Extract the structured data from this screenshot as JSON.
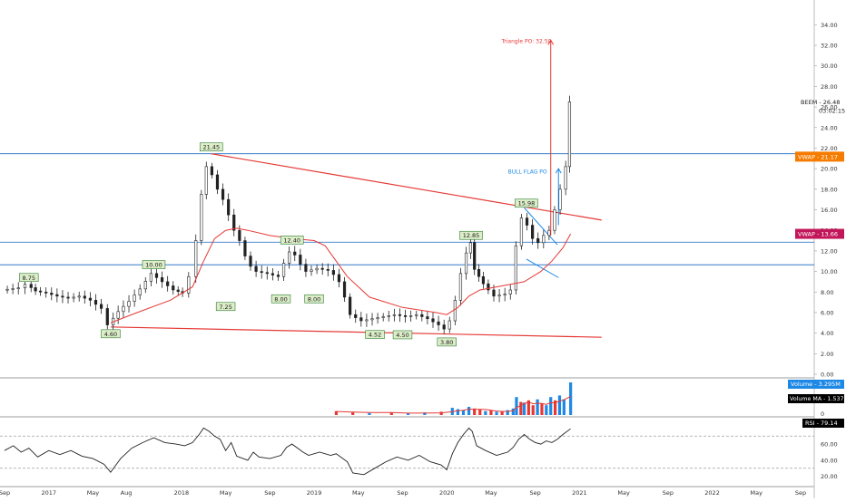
{
  "chart_data": {
    "type": "candlestick",
    "ticker": "BEEM",
    "price_label": "BEEM - 26.48",
    "countdown": "03:02:15",
    "ylim": [
      0,
      35
    ],
    "y_ticks": [
      "0.00",
      "2.00",
      "4.00",
      "6.00",
      "8.00",
      "10.00",
      "12.00",
      "14.00",
      "16.00",
      "18.00",
      "20.00",
      "22.00",
      "24.00",
      "26.00",
      "28.00",
      "30.00",
      "32.00",
      "34.00"
    ],
    "x_ticks": [
      {
        "label": "Sep",
        "t": 0
      },
      {
        "label": "2017",
        "t": 4
      },
      {
        "label": "May",
        "t": 8
      },
      {
        "label": "Aug",
        "t": 11
      },
      {
        "label": "2018",
        "t": 16
      },
      {
        "label": "May",
        "t": 20
      },
      {
        "label": "Sep",
        "t": 24
      },
      {
        "label": "2019",
        "t": 28
      },
      {
        "label": "May",
        "t": 32
      },
      {
        "label": "Sep",
        "t": 36
      },
      {
        "label": "2020",
        "t": 40
      },
      {
        "label": "May",
        "t": 44
      },
      {
        "label": "Sep",
        "t": 48
      },
      {
        "label": "2021",
        "t": 52
      },
      {
        "label": "May",
        "t": 56
      },
      {
        "label": "Sep",
        "t": 60
      },
      {
        "label": "2022",
        "t": 64
      },
      {
        "label": "May",
        "t": 68
      },
      {
        "label": "Sep",
        "t": 72
      }
    ],
    "price_series": [
      [
        0,
        8.2
      ],
      [
        1.5,
        8.4
      ],
      [
        2.2,
        8.75
      ],
      [
        3,
        8.1
      ],
      [
        4,
        7.9
      ],
      [
        5,
        7.6
      ],
      [
        6,
        7.4
      ],
      [
        7,
        7.6
      ],
      [
        8,
        7.2
      ],
      [
        9,
        6.4
      ],
      [
        9.6,
        4.8
      ],
      [
        10.5,
        6.1
      ],
      [
        11.5,
        7.1
      ],
      [
        12.5,
        8.3
      ],
      [
        13.5,
        9.8
      ],
      [
        14.5,
        9.0
      ],
      [
        15.5,
        8.2
      ],
      [
        16.3,
        7.9
      ],
      [
        17,
        9.5
      ],
      [
        17.6,
        13.0
      ],
      [
        18,
        17.5
      ],
      [
        18.5,
        20.2
      ],
      [
        19,
        19.4
      ],
      [
        19.5,
        18.0
      ],
      [
        20,
        17.0
      ],
      [
        20.5,
        15.5
      ],
      [
        21,
        14.0
      ],
      [
        21.5,
        13.0
      ],
      [
        22,
        11.5
      ],
      [
        22.5,
        10.5
      ],
      [
        23,
        10.0
      ],
      [
        24,
        9.8
      ],
      [
        25,
        9.5
      ],
      [
        25.5,
        10.8
      ],
      [
        26,
        11.9
      ],
      [
        26.5,
        11.6
      ],
      [
        27,
        10.7
      ],
      [
        27.5,
        10.0
      ],
      [
        28.5,
        10.3
      ],
      [
        29.5,
        10.1
      ],
      [
        30,
        9.7
      ],
      [
        30.5,
        9.0
      ],
      [
        31,
        7.5
      ],
      [
        31.5,
        5.8
      ],
      [
        32.5,
        5.2
      ],
      [
        33.5,
        5.4
      ],
      [
        34.5,
        5.6
      ],
      [
        35.5,
        5.8
      ],
      [
        36.5,
        5.6
      ],
      [
        37.5,
        5.8
      ],
      [
        38.5,
        5.4
      ],
      [
        39.5,
        4.8
      ],
      [
        40,
        4.4
      ],
      [
        40.5,
        5.2
      ],
      [
        41,
        7.2
      ],
      [
        41.5,
        9.8
      ],
      [
        42,
        11.8
      ],
      [
        42.3,
        12.8
      ],
      [
        42.7,
        10.2
      ],
      [
        43.5,
        8.8
      ],
      [
        44.5,
        7.6
      ],
      [
        45.5,
        7.8
      ],
      [
        46,
        8.2
      ],
      [
        46.5,
        12.5
      ],
      [
        47,
        15.2
      ],
      [
        47.5,
        14.5
      ],
      [
        48,
        13.2
      ],
      [
        48.5,
        12.8
      ],
      [
        49,
        13.5
      ],
      [
        49.5,
        14.0
      ],
      [
        50,
        16.0
      ],
      [
        50.5,
        18.0
      ],
      [
        51,
        20.2
      ],
      [
        51.2,
        26.5
      ]
    ],
    "vwap_series": [
      [
        9.6,
        5.0
      ],
      [
        12,
        6.0
      ],
      [
        15,
        7.2
      ],
      [
        17,
        8.5
      ],
      [
        18,
        11.0
      ],
      [
        19,
        13.2
      ],
      [
        20,
        14.0
      ],
      [
        21,
        14.2
      ],
      [
        22,
        14.0
      ],
      [
        24,
        13.5
      ],
      [
        26,
        13.2
      ],
      [
        28,
        13.0
      ],
      [
        29,
        12.5
      ],
      [
        30,
        11.0
      ],
      [
        31,
        9.5
      ],
      [
        33,
        7.5
      ],
      [
        36,
        6.5
      ],
      [
        39,
        6.0
      ],
      [
        40,
        5.8
      ],
      [
        41,
        6.5
      ],
      [
        42,
        7.6
      ],
      [
        43,
        8.2
      ],
      [
        45,
        8.6
      ],
      [
        47,
        9.0
      ],
      [
        48.5,
        10.0
      ],
      [
        49.5,
        11.0
      ],
      [
        50.5,
        12.3
      ],
      [
        51.2,
        13.66
      ]
    ],
    "horizontal_lines": [
      21.45,
      12.85,
      10.65
    ],
    "trendlines": [
      {
        "from": [
          18.7,
          21.45
        ],
        "to": [
          54,
          15.0
        ]
      },
      {
        "from": [
          9.6,
          4.6
        ],
        "to": [
          54,
          3.6
        ]
      }
    ],
    "flag_lines": [
      {
        "from": [
          47,
          16.2
        ],
        "to": [
          50,
          12.6
        ]
      },
      {
        "from": [
          47.2,
          11.2
        ],
        "to": [
          50.1,
          9.4
        ]
      }
    ],
    "triangle_po": {
      "t": 49.4,
      "from": 13.5,
      "to": 32.5
    },
    "bull_flag_po": {
      "t": 50.1,
      "from": 14.5,
      "to": 20.0
    },
    "price_labels": [
      {
        "text": "8.75",
        "t": 2.2,
        "y": 8.75,
        "pos": "above"
      },
      {
        "text": "4.60",
        "t": 9.6,
        "y": 4.6,
        "pos": "below"
      },
      {
        "text": "10.00",
        "t": 13.5,
        "y": 10.0,
        "pos": "above"
      },
      {
        "text": "21.45",
        "t": 18.7,
        "y": 21.45,
        "pos": "above"
      },
      {
        "text": "7.25",
        "t": 20.0,
        "y": 7.25,
        "pos": "below"
      },
      {
        "text": "8.00",
        "t": 25.0,
        "y": 8.0,
        "pos": "below"
      },
      {
        "text": "12.40",
        "t": 26.0,
        "y": 12.4,
        "pos": "above"
      },
      {
        "text": "8.00",
        "t": 28.0,
        "y": 8.0,
        "pos": "below"
      },
      {
        "text": "4.52",
        "t": 33.5,
        "y": 4.52,
        "pos": "below"
      },
      {
        "text": "4.50",
        "t": 36.0,
        "y": 4.5,
        "pos": "below"
      },
      {
        "text": "3.80",
        "t": 40.0,
        "y": 3.8,
        "pos": "below"
      },
      {
        "text": "12.85",
        "t": 42.2,
        "y": 12.85,
        "pos": "above"
      },
      {
        "text": "15.98",
        "t": 47.2,
        "y": 15.98,
        "pos": "above"
      }
    ],
    "annotations": [
      {
        "text": "Triangle PO: 32.50",
        "t": 47.2,
        "y": 32.5,
        "color": "#e53935"
      },
      {
        "text": "BULL FLAG PO",
        "t": 47.3,
        "y": 19.8,
        "color": "#1e88e5"
      }
    ],
    "axis_badges": [
      {
        "text": "VWAP - 21.17",
        "y": 21.17,
        "color": "#f57c00"
      },
      {
        "text": "VWAP - 13.66",
        "y": 13.66,
        "color": "#c2185b"
      }
    ],
    "volume": {
      "label": "Volume - 3.295M",
      "ma_label": "Volume MA - 1.537M",
      "zero_label": "0",
      "bars": [
        {
          "t": 30.0,
          "v": 0.12,
          "c": "#e53935"
        },
        {
          "t": 31.5,
          "v": 0.08,
          "c": "#e53935"
        },
        {
          "t": 33.0,
          "v": 0.06,
          "c": "#1e88e5"
        },
        {
          "t": 35.0,
          "v": 0.07,
          "c": "#e53935"
        },
        {
          "t": 36.5,
          "v": 0.05,
          "c": "#1e88e5"
        },
        {
          "t": 38.0,
          "v": 0.08,
          "c": "#1e88e5"
        },
        {
          "t": 39.5,
          "v": 0.1,
          "c": "#e53935"
        },
        {
          "t": 40.5,
          "v": 0.22,
          "c": "#1e88e5"
        },
        {
          "t": 41.0,
          "v": 0.18,
          "c": "#1e88e5"
        },
        {
          "t": 41.5,
          "v": 0.15,
          "c": "#1e88e5"
        },
        {
          "t": 42.0,
          "v": 0.25,
          "c": "#1e88e5"
        },
        {
          "t": 42.5,
          "v": 0.2,
          "c": "#e53935"
        },
        {
          "t": 43.0,
          "v": 0.18,
          "c": "#e53935"
        },
        {
          "t": 43.5,
          "v": 0.12,
          "c": "#1e88e5"
        },
        {
          "t": 44.0,
          "v": 0.14,
          "c": "#e53935"
        },
        {
          "t": 44.5,
          "v": 0.1,
          "c": "#1e88e5"
        },
        {
          "t": 45.0,
          "v": 0.12,
          "c": "#e53935"
        },
        {
          "t": 45.5,
          "v": 0.15,
          "c": "#1e88e5"
        },
        {
          "t": 46.0,
          "v": 0.2,
          "c": "#1e88e5"
        },
        {
          "t": 46.3,
          "v": 0.55,
          "c": "#1e88e5"
        },
        {
          "t": 46.7,
          "v": 0.4,
          "c": "#e53935"
        },
        {
          "t": 47.0,
          "v": 0.38,
          "c": "#1e88e5"
        },
        {
          "t": 47.4,
          "v": 0.45,
          "c": "#e53935"
        },
        {
          "t": 47.8,
          "v": 0.3,
          "c": "#e53935"
        },
        {
          "t": 48.2,
          "v": 0.48,
          "c": "#1e88e5"
        },
        {
          "t": 48.6,
          "v": 0.35,
          "c": "#e53935"
        },
        {
          "t": 49.0,
          "v": 0.3,
          "c": "#1e88e5"
        },
        {
          "t": 49.4,
          "v": 0.55,
          "c": "#1e88e5"
        },
        {
          "t": 49.8,
          "v": 0.45,
          "c": "#e53935"
        },
        {
          "t": 50.2,
          "v": 0.6,
          "c": "#1e88e5"
        },
        {
          "t": 50.6,
          "v": 0.48,
          "c": "#1e88e5"
        },
        {
          "t": 51.2,
          "v": 1.0,
          "c": "#1e88e5"
        }
      ]
    },
    "rsi": {
      "label": "RSI - 79.14",
      "ticks": [
        "20.00",
        "40.00",
        "60.00"
      ],
      "ylim": [
        15,
        85
      ],
      "upper_band": 70,
      "lower_band": 30,
      "series": [
        [
          0,
          52
        ],
        [
          0.8,
          58
        ],
        [
          1.5,
          50
        ],
        [
          2.2,
          55
        ],
        [
          3,
          44
        ],
        [
          4,
          52
        ],
        [
          5,
          47
        ],
        [
          6,
          52
        ],
        [
          7,
          45
        ],
        [
          8,
          42
        ],
        [
          9,
          35
        ],
        [
          9.6,
          25
        ],
        [
          10.5,
          42
        ],
        [
          11.5,
          55
        ],
        [
          12.5,
          62
        ],
        [
          13.5,
          68
        ],
        [
          14.5,
          62
        ],
        [
          15.5,
          60
        ],
        [
          16.3,
          58
        ],
        [
          17,
          62
        ],
        [
          17.6,
          72
        ],
        [
          18,
          80
        ],
        [
          18.5,
          76
        ],
        [
          19,
          70
        ],
        [
          19.5,
          66
        ],
        [
          20,
          52
        ],
        [
          20.5,
          62
        ],
        [
          21,
          45
        ],
        [
          22,
          40
        ],
        [
          22.5,
          50
        ],
        [
          23,
          44
        ],
        [
          24,
          42
        ],
        [
          25,
          46
        ],
        [
          25.5,
          56
        ],
        [
          26,
          60
        ],
        [
          27,
          50
        ],
        [
          27.5,
          46
        ],
        [
          28.5,
          50
        ],
        [
          29.5,
          46
        ],
        [
          30,
          48
        ],
        [
          31,
          38
        ],
        [
          31.5,
          24
        ],
        [
          32.5,
          22
        ],
        [
          33.5,
          30
        ],
        [
          34.5,
          38
        ],
        [
          35.5,
          44
        ],
        [
          36.5,
          40
        ],
        [
          37.5,
          46
        ],
        [
          38.5,
          38
        ],
        [
          39.5,
          34
        ],
        [
          40,
          28
        ],
        [
          40.5,
          48
        ],
        [
          41,
          62
        ],
        [
          41.5,
          72
        ],
        [
          42,
          80
        ],
        [
          42.3,
          76
        ],
        [
          42.7,
          58
        ],
        [
          43.5,
          52
        ],
        [
          44.5,
          46
        ],
        [
          45.5,
          50
        ],
        [
          46,
          56
        ],
        [
          46.5,
          66
        ],
        [
          47,
          72
        ],
        [
          47.5,
          66
        ],
        [
          48,
          62
        ],
        [
          48.5,
          60
        ],
        [
          49,
          64
        ],
        [
          49.5,
          62
        ],
        [
          50,
          66
        ],
        [
          50.5,
          72
        ],
        [
          51.2,
          79.14
        ]
      ]
    }
  }
}
